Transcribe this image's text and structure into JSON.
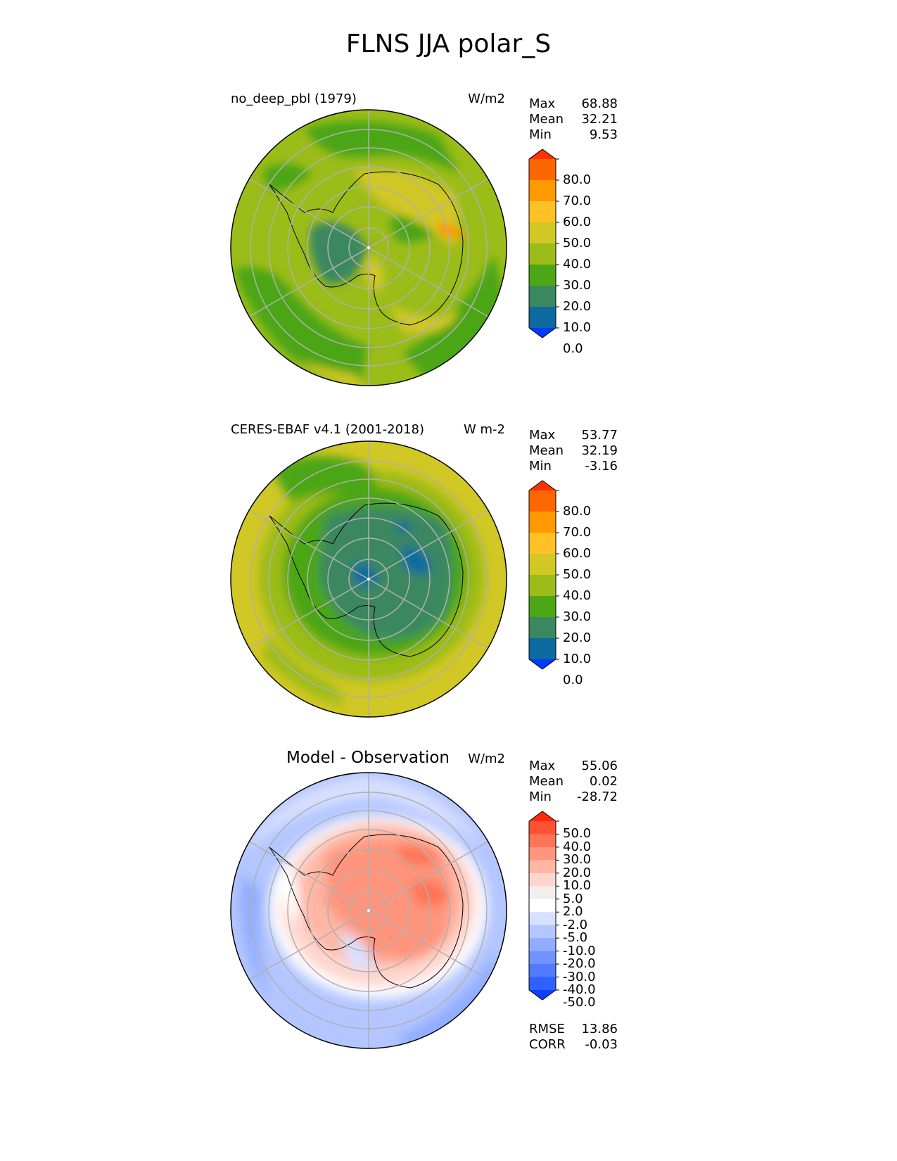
{
  "title": "FLNS JJA polar_S",
  "panels": [
    {
      "id": "test",
      "left_title": "no_deep_pbl (1979)",
      "units": "W/m2",
      "stats": [
        {
          "label": "Max",
          "value": "68.88"
        },
        {
          "label": "Mean",
          "value": "32.21"
        },
        {
          "label": "Min",
          "value": "9.53"
        }
      ],
      "colorbar": "main"
    },
    {
      "id": "ref",
      "left_title": "CERES-EBAF v4.1 (2001-2018)",
      "units": "W m-2",
      "stats": [
        {
          "label": "Max",
          "value": "53.77"
        },
        {
          "label": "Mean",
          "value": "32.19"
        },
        {
          "label": "Min",
          "value": "-3.16"
        }
      ],
      "colorbar": "main"
    },
    {
      "id": "diff",
      "center_title": "Model - Observation",
      "units": "W/m2",
      "stats": [
        {
          "label": "Max",
          "value": "55.06"
        },
        {
          "label": "Mean",
          "value": "0.02"
        },
        {
          "label": "Min",
          "value": "-28.72"
        }
      ],
      "metrics": [
        {
          "label": "RMSE",
          "value": "13.86"
        },
        {
          "label": "CORR",
          "value": "-0.03"
        }
      ],
      "colorbar": "diff"
    }
  ],
  "colorbars": {
    "main": {
      "labels": [
        "80.0",
        "70.0",
        "60.0",
        "50.0",
        "40.0",
        "30.0",
        "20.0",
        "10.0",
        "0.0"
      ],
      "colors": [
        "#ff3300",
        "#ff6600",
        "#ff9900",
        "#ffc125",
        "#d1c725",
        "#9bbc19",
        "#4ca615",
        "#3a8860",
        "#0c6aa0",
        "#0039ff"
      ]
    },
    "diff": {
      "labels": [
        "50.0",
        "40.0",
        "30.0",
        "20.0",
        "10.0",
        "5.0",
        "2.0",
        "-2.0",
        "-5.0",
        "-10.0",
        "-20.0",
        "-30.0",
        "-40.0",
        "-50.0"
      ],
      "colors": [
        "#ff2a0a",
        "#ff5233",
        "#ff7357",
        "#ff957c",
        "#ffb6a4",
        "#ffd6ce",
        "#f3eeee",
        "#ffffff",
        "#d8e0ff",
        "#b4c6ff",
        "#92adff",
        "#7293ff",
        "#517aff",
        "#3061ff",
        "#0a40ff"
      ]
    }
  },
  "chart_data": [
    {
      "type": "heatmap",
      "title": "no_deep_pbl (1979)",
      "projection": "south polar stereographic",
      "units": "W/m2",
      "levels": [
        0,
        10,
        20,
        30,
        40,
        50,
        60,
        70,
        80
      ],
      "max": 68.88,
      "mean": 32.21,
      "min": 9.53
    },
    {
      "type": "heatmap",
      "title": "CERES-EBAF v4.1 (2001-2018)",
      "projection": "south polar stereographic",
      "units": "W m-2",
      "levels": [
        0,
        10,
        20,
        30,
        40,
        50,
        60,
        70,
        80
      ],
      "max": 53.77,
      "mean": 32.19,
      "min": -3.16
    },
    {
      "type": "heatmap",
      "title": "Model - Observation",
      "projection": "south polar stereographic",
      "units": "W/m2",
      "levels": [
        -50,
        -40,
        -30,
        -20,
        -10,
        -5,
        -2,
        2,
        5,
        10,
        20,
        30,
        40,
        50
      ],
      "max": 55.06,
      "mean": 0.02,
      "min": -28.72,
      "rmse": 13.86,
      "corr": -0.03
    }
  ]
}
